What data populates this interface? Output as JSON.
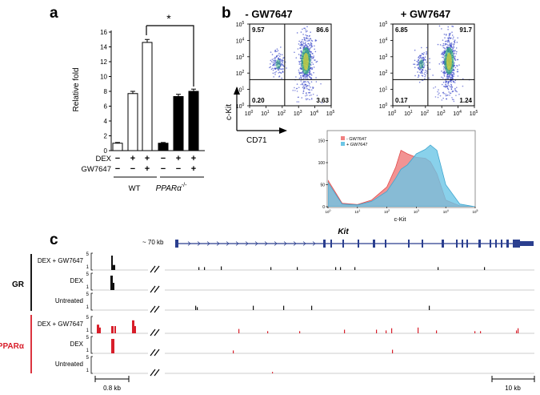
{
  "panel_labels": {
    "a": "a",
    "b": "b",
    "c": "c"
  },
  "panel_a": {
    "ylabel": "Relative fold",
    "yticks": [
      "0",
      "2",
      "4",
      "6",
      "8",
      "10",
      "12",
      "14",
      "16"
    ],
    "significance": "*",
    "row_labels": {
      "dex": "DEX",
      "gw": "GW7647"
    },
    "dex_signs": [
      "−",
      "+",
      "+",
      "−",
      "+",
      "+"
    ],
    "gw_signs": [
      "−",
      "−",
      "+",
      "−",
      "−",
      "+"
    ],
    "groups": {
      "wt": "WT",
      "ko": "PPARα",
      "ko_sup": "-/-"
    }
  },
  "panel_b": {
    "minus_title": "- GW7647",
    "plus_title": "+ GW7647",
    "ylabel": "c-Kit",
    "xlabel": "CD71",
    "axis_ticks": [
      "100",
      "101",
      "102",
      "103",
      "104",
      "105"
    ],
    "minus_quadrants": {
      "ul": "9.57",
      "ur": "86.6",
      "ll": "0.20",
      "lr": "3.63"
    },
    "plus_quadrants": {
      "ul": "6.85",
      "ur": "91.7",
      "ll": "0.17",
      "lr": "1.24"
    },
    "hist_yticks": [
      "0",
      "50",
      "100",
      "150"
    ],
    "hist_xlabel": "c-Kit",
    "hist_legend": [
      "- GW7647",
      "+ GW7647"
    ]
  },
  "panel_c": {
    "gene": "Kit",
    "gap_label": "~ 70 kb",
    "gr_label": "GR",
    "ppar_label": "PPARα",
    "track_labels": [
      "DEX + GW7647",
      "DEX",
      "Untreated",
      "DEX + GW7647",
      "DEX",
      "Untreated"
    ],
    "scale_hi": "5",
    "scale_lo": "1",
    "scale_left": "0.8 kb",
    "scale_right": "10 kb"
  },
  "colors": {
    "gr_track": "#111111",
    "ppar_track": "#d81e2a",
    "gene": "#2b3f8f",
    "hist_minus": "#f08080",
    "hist_plus": "#6cc6e6"
  },
  "chart_data": [
    {
      "type": "bar",
      "categories": [
        "WT −/−",
        "WT DEX",
        "WT DEX+GW7647",
        "PPARα-/- −/−",
        "PPARα-/- DEX",
        "PPARα-/- DEX+GW7647"
      ],
      "values": [
        1.0,
        7.7,
        14.6,
        1.0,
        7.3,
        8.0
      ],
      "errors": [
        0.1,
        0.3,
        0.4,
        0.1,
        0.3,
        0.3
      ],
      "fill": [
        "white",
        "white",
        "white",
        "black",
        "black",
        "black"
      ],
      "ylabel": "Relative fold",
      "ylim": [
        0,
        16
      ]
    },
    {
      "type": "scatter",
      "title": "- GW7647",
      "xlabel": "CD71",
      "ylabel": "c-Kit",
      "scale": "log",
      "xlim": [
        1,
        100000
      ],
      "ylim": [
        1,
        100000
      ],
      "quadrants": {
        "upper_left": 9.57,
        "upper_right": 86.6,
        "lower_left": 0.2,
        "lower_right": 3.63
      }
    },
    {
      "type": "scatter",
      "title": "+ GW7647",
      "xlabel": "CD71",
      "ylabel": "c-Kit",
      "scale": "log",
      "xlim": [
        1,
        100000
      ],
      "ylim": [
        1,
        100000
      ],
      "quadrants": {
        "upper_left": 6.85,
        "upper_right": 91.7,
        "lower_left": 0.17,
        "lower_right": 1.24
      }
    },
    {
      "type": "area",
      "xlabel": "c-Kit",
      "scale": "log",
      "xlim": [
        1,
        100000
      ],
      "ylim": [
        0,
        160
      ],
      "series": [
        {
          "name": "- GW7647",
          "x": [
            1,
            3,
            10,
            30,
            100,
            200,
            300,
            500,
            1000,
            2000,
            3000,
            5000,
            10000,
            30000,
            100000
          ],
          "values": [
            60,
            8,
            5,
            15,
            45,
            90,
            128,
            120,
            112,
            110,
            102,
            75,
            15,
            2,
            0
          ]
        },
        {
          "name": "+ GW7647",
          "x": [
            1,
            3,
            10,
            30,
            100,
            200,
            300,
            500,
            1000,
            2000,
            3000,
            5000,
            10000,
            30000,
            100000
          ],
          "values": [
            55,
            6,
            4,
            12,
            35,
            65,
            85,
            95,
            120,
            130,
            140,
            128,
            50,
            6,
            0
          ]
        }
      ]
    }
  ]
}
